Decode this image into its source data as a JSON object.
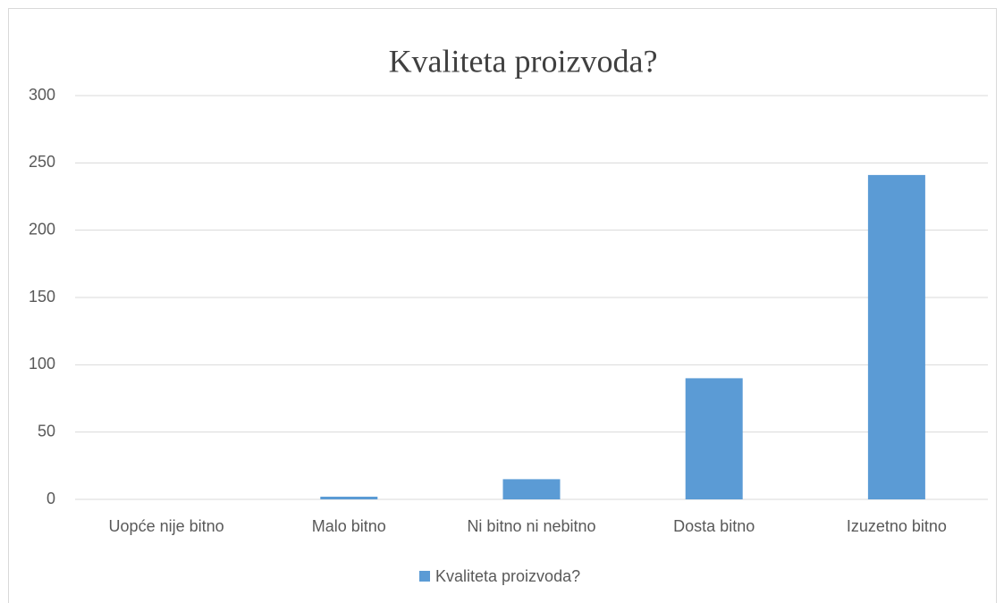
{
  "chart_data": {
    "type": "bar",
    "title": "Kvaliteta proizvoda?",
    "categories": [
      "Uopće nije bitno",
      "Malo bitno",
      "Ni bitno ni nebitno",
      "Dosta bitno",
      "Izuzetno bitno"
    ],
    "series": [
      {
        "name": "Kvaliteta proizvoda?",
        "color": "#5b9bd5",
        "values": [
          0,
          2,
          15,
          90,
          241
        ]
      }
    ],
    "ylim": [
      0,
      300
    ],
    "yticks": [
      0,
      50,
      100,
      150,
      200,
      250,
      300
    ],
    "grid": true,
    "legend": "bottom"
  }
}
